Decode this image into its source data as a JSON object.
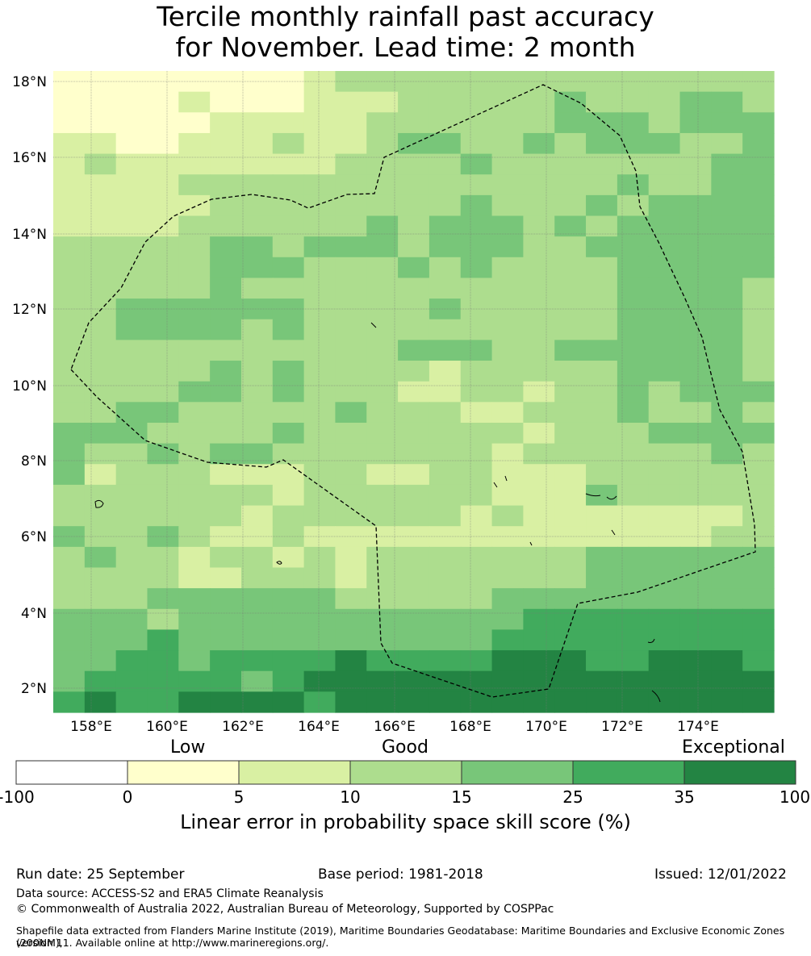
{
  "title_line1": "Tercile monthly rainfall past accuracy",
  "title_line2": "for November. Lead time: 2 month",
  "map": {
    "lat_labels": [
      "18°N",
      "16°N",
      "14°N",
      "12°N",
      "10°N",
      "8°N",
      "6°N",
      "4°N",
      "2°N"
    ],
    "lon_labels": [
      "158°E",
      "160°E",
      "162°E",
      "164°E",
      "166°E",
      "168°E",
      "170°E",
      "172°E",
      "174°E"
    ],
    "category_colors": [
      "#ffffff",
      "#ffffcc",
      "#d9f0a3",
      "#addd8e",
      "#78c679",
      "#41ab5d",
      "#238443"
    ]
  },
  "colorbar": {
    "label_low": "Low",
    "label_good": "Good",
    "label_exceptional": "Exceptional",
    "ticks": [
      "-100",
      "0",
      "5",
      "10",
      "15",
      "25",
      "35",
      "100"
    ],
    "title": "Linear error in probability space skill score (%)"
  },
  "footer": {
    "run_date": "Run date: 25 September",
    "base_period": "Base period: 1981-2018",
    "issued": "Issued: 12/01/2022",
    "data_source": "Data source: ACCESS-S2 and ERA5 Climate Reanalysis",
    "copyright": "© Commonwealth of Australia 2022, Australian Bureau of Meteorology, Supported by COSPPac",
    "shapefile_1": "Shapefile data extracted from Flanders Marine Institute (2019), Maritime Boundaries Geodatabase: Maritime Boundaries and Exclusive Economic Zones (200NM),",
    "shapefile_2": "version 11. Available online at http://www.marineregions.org/."
  }
}
